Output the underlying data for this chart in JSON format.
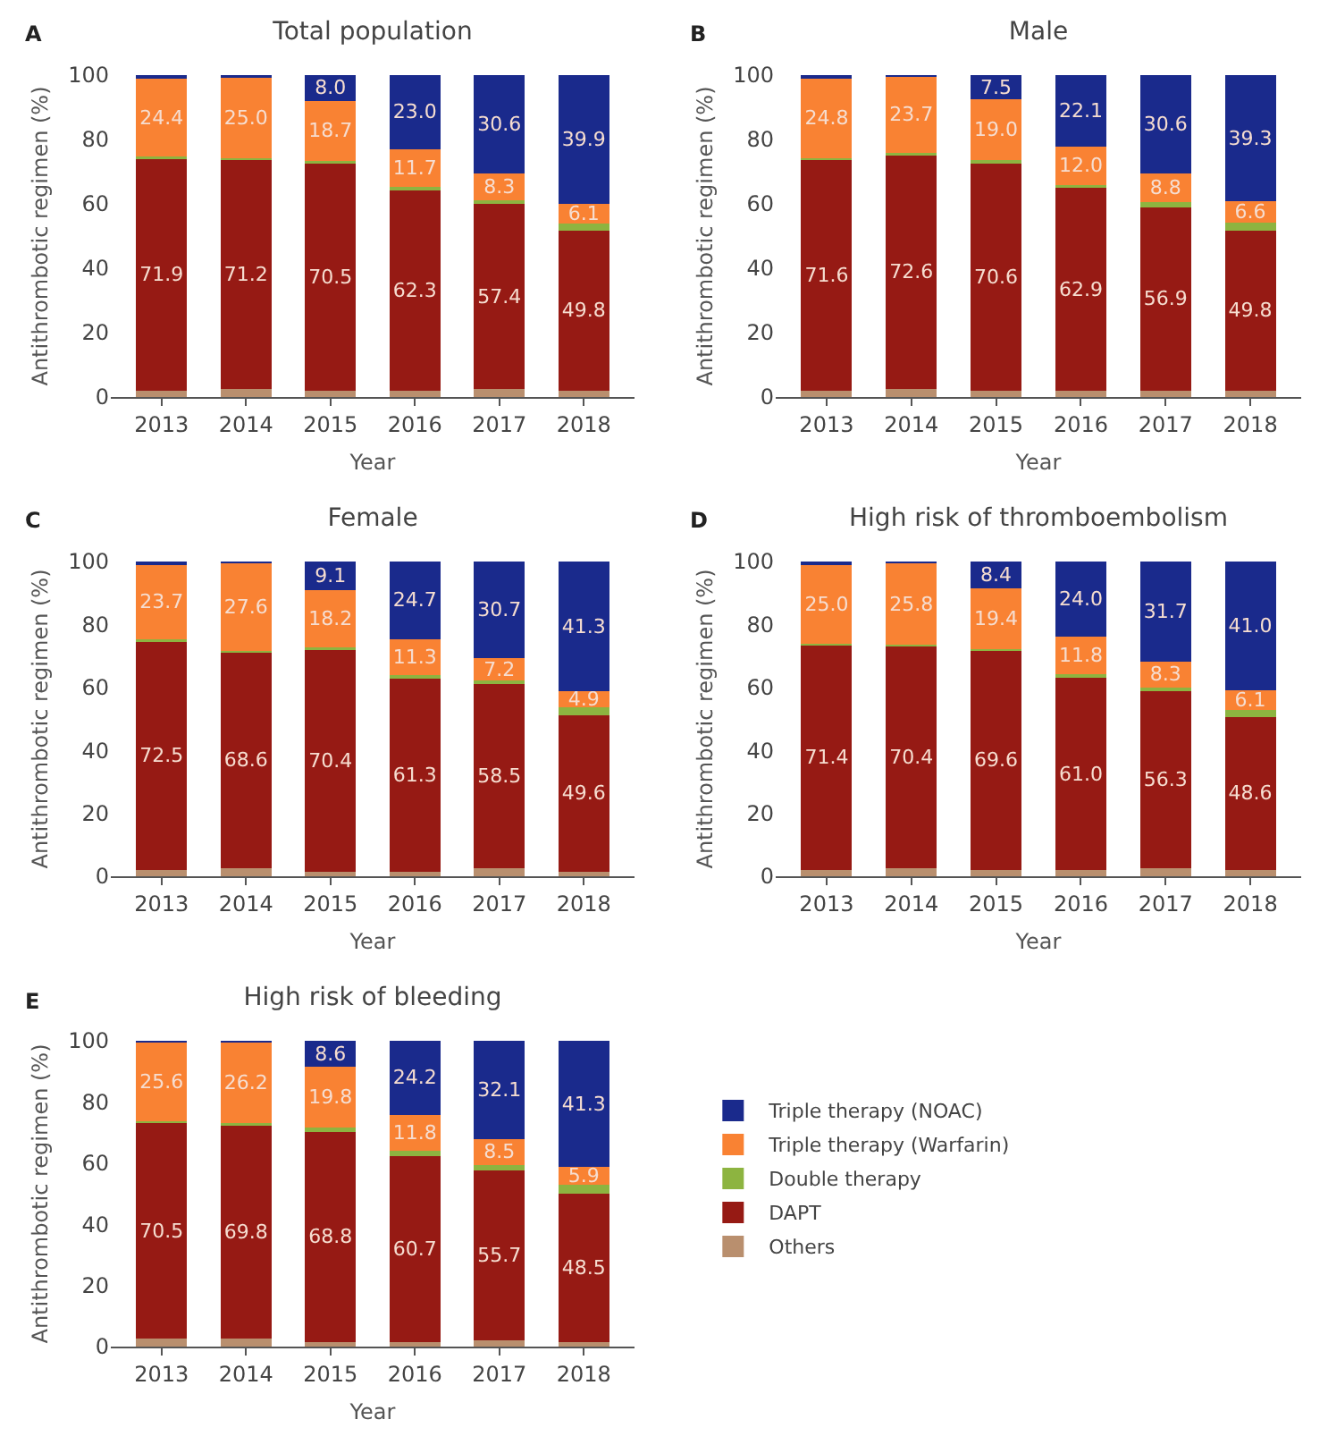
{
  "chart_data": [
    {
      "type": "bar",
      "stacked": true,
      "title": "Total population",
      "annotations": [
        "A"
      ],
      "xlabel": "Year",
      "ylabel": "Antithrombotic regimen (%)",
      "categories": [
        "2013",
        "2014",
        "2015",
        "2016",
        "2017",
        "2018"
      ],
      "ylim": [
        0,
        100
      ],
      "yticks": [
        0,
        20,
        40,
        60,
        80,
        100
      ],
      "series": [
        {
          "color": "#b98f6e",
          "values": [
            2,
            2.5,
            2,
            2,
            2.5,
            2
          ]
        },
        {
          "color": "#961a14",
          "values": [
            71.9,
            71.2,
            70.5,
            62.3,
            57.4,
            49.8
          ],
          "value_labels": [
            "71.9",
            "71.2",
            "70.5",
            "62.3",
            "57.4",
            "49.8"
          ]
        },
        {
          "color": "#8db440",
          "values": [
            0.7,
            0.6,
            0.8,
            1.0,
            1.2,
            2.2
          ]
        },
        {
          "color": "#f98233",
          "values": [
            24.4,
            25.0,
            18.7,
            11.7,
            8.3,
            6.1
          ],
          "value_labels": [
            "24.4",
            "25.0",
            "18.7",
            "11.7",
            "8.3",
            "6.1"
          ]
        },
        {
          "color": "#1a2a8c",
          "values": [
            1.0,
            0.7,
            8.0,
            23.0,
            30.6,
            39.9
          ],
          "value_labels": [
            null,
            null,
            "8.0",
            "23.0",
            "30.6",
            "39.9"
          ]
        }
      ]
    },
    {
      "type": "bar",
      "stacked": true,
      "title": "Male",
      "annotations": [
        "B"
      ],
      "xlabel": "Year",
      "ylabel": "Antithrombotic regimen (%)",
      "categories": [
        "2013",
        "2014",
        "2015",
        "2016",
        "2017",
        "2018"
      ],
      "ylim": [
        0,
        100
      ],
      "yticks": [
        0,
        20,
        40,
        60,
        80,
        100
      ],
      "series": [
        {
          "color": "#b98f6e",
          "values": [
            2,
            2.5,
            2,
            2,
            2,
            2
          ]
        },
        {
          "color": "#961a14",
          "values": [
            71.6,
            72.6,
            70.6,
            62.9,
            56.9,
            49.8
          ],
          "value_labels": [
            "71.6",
            "72.6",
            "70.6",
            "62.9",
            "56.9",
            "49.8"
          ]
        },
        {
          "color": "#8db440",
          "values": [
            0.6,
            0.7,
            0.9,
            1.0,
            1.7,
            2.3
          ]
        },
        {
          "color": "#f98233",
          "values": [
            24.8,
            23.7,
            19.0,
            12.0,
            8.8,
            6.6
          ],
          "value_labels": [
            "24.8",
            "23.7",
            "19.0",
            "12.0",
            "8.8",
            "6.6"
          ]
        },
        {
          "color": "#1a2a8c",
          "values": [
            1.0,
            0.5,
            7.5,
            22.1,
            30.6,
            39.3
          ],
          "value_labels": [
            null,
            null,
            "7.5",
            "22.1",
            "30.6",
            "39.3"
          ]
        }
      ]
    },
    {
      "type": "bar",
      "stacked": true,
      "title": "Female",
      "annotations": [
        "C"
      ],
      "xlabel": "Year",
      "ylabel": "Antithrombotic regimen (%)",
      "categories": [
        "2013",
        "2014",
        "2015",
        "2016",
        "2017",
        "2018"
      ],
      "ylim": [
        0,
        100
      ],
      "yticks": [
        0,
        20,
        40,
        60,
        80,
        100
      ],
      "series": [
        {
          "color": "#b98f6e",
          "values": [
            2,
            2.5,
            1.5,
            1.5,
            2.5,
            1.5
          ]
        },
        {
          "color": "#961a14",
          "values": [
            72.5,
            68.6,
            70.4,
            61.3,
            58.5,
            49.6
          ],
          "value_labels": [
            "72.5",
            "68.6",
            "70.4",
            "61.3",
            "58.5",
            "49.6"
          ]
        },
        {
          "color": "#8db440",
          "values": [
            0.8,
            0.6,
            0.8,
            1.2,
            1.1,
            2.7
          ]
        },
        {
          "color": "#f98233",
          "values": [
            23.7,
            27.6,
            18.2,
            11.3,
            7.2,
            4.9
          ],
          "value_labels": [
            "23.7",
            "27.6",
            "18.2",
            "11.3",
            "7.2",
            "4.9"
          ]
        },
        {
          "color": "#1a2a8c",
          "values": [
            1.0,
            0.7,
            9.1,
            24.7,
            30.7,
            41.3
          ],
          "value_labels": [
            null,
            null,
            "9.1",
            "24.7",
            "30.7",
            "41.3"
          ]
        }
      ]
    },
    {
      "type": "bar",
      "stacked": true,
      "title": "High risk of thromboembolism",
      "annotations": [
        "D"
      ],
      "xlabel": "Year",
      "ylabel": "Antithrombotic regimen (%)",
      "categories": [
        "2013",
        "2014",
        "2015",
        "2016",
        "2017",
        "2018"
      ],
      "ylim": [
        0,
        100
      ],
      "yticks": [
        0,
        20,
        40,
        60,
        80,
        100
      ],
      "series": [
        {
          "color": "#b98f6e",
          "values": [
            2,
            2.5,
            2,
            2,
            2.5,
            2
          ]
        },
        {
          "color": "#961a14",
          "values": [
            71.4,
            70.4,
            69.6,
            61.0,
            56.3,
            48.6
          ],
          "value_labels": [
            "71.4",
            "70.4",
            "69.6",
            "61.0",
            "56.3",
            "48.6"
          ]
        },
        {
          "color": "#8db440",
          "values": [
            0.6,
            0.6,
            0.6,
            1.2,
            1.2,
            2.3
          ]
        },
        {
          "color": "#f98233",
          "values": [
            25.0,
            25.8,
            19.4,
            11.8,
            8.3,
            6.1
          ],
          "value_labels": [
            "25.0",
            "25.8",
            "19.4",
            "11.8",
            "8.3",
            "6.1"
          ]
        },
        {
          "color": "#1a2a8c",
          "values": [
            1.0,
            0.7,
            8.4,
            24.0,
            31.7,
            41.0
          ],
          "value_labels": [
            null,
            null,
            "8.4",
            "24.0",
            "31.7",
            "41.0"
          ]
        }
      ]
    },
    {
      "type": "bar",
      "stacked": true,
      "title": "High risk of bleeding",
      "annotations": [
        "E"
      ],
      "xlabel": "Year",
      "ylabel": "Antithrombotic regimen (%)",
      "categories": [
        "2013",
        "2014",
        "2015",
        "2016",
        "2017",
        "2018"
      ],
      "ylim": [
        0,
        100
      ],
      "yticks": [
        0,
        20,
        40,
        60,
        80,
        100
      ],
      "legend": "right",
      "series": [
        {
          "name": "Others",
          "color": "#b98f6e",
          "values": [
            2.5,
            2.5,
            1.5,
            1.5,
            2,
            1.5
          ]
        },
        {
          "name": "DAPT",
          "color": "#961a14",
          "values": [
            70.5,
            69.8,
            68.8,
            60.7,
            55.7,
            48.5
          ],
          "value_labels": [
            "70.5",
            "69.8",
            "68.8",
            "60.7",
            "55.7",
            "48.5"
          ]
        },
        {
          "name": "Double therapy",
          "color": "#8db440",
          "values": [
            0.8,
            0.8,
            1.3,
            1.8,
            1.7,
            2.8
          ]
        },
        {
          "name": "Triple therapy (Warfarin)",
          "color": "#f98233",
          "values": [
            25.6,
            26.2,
            19.8,
            11.8,
            8.5,
            5.9
          ],
          "value_labels": [
            "25.6",
            "26.2",
            "19.8",
            "11.8",
            "8.5",
            "5.9"
          ]
        },
        {
          "name": "Triple therapy (NOAC)",
          "color": "#1a2a8c",
          "values": [
            0.6,
            0.7,
            8.6,
            24.2,
            32.1,
            41.3
          ],
          "value_labels": [
            null,
            null,
            "8.6",
            "24.2",
            "32.1",
            "41.3"
          ]
        }
      ]
    }
  ]
}
